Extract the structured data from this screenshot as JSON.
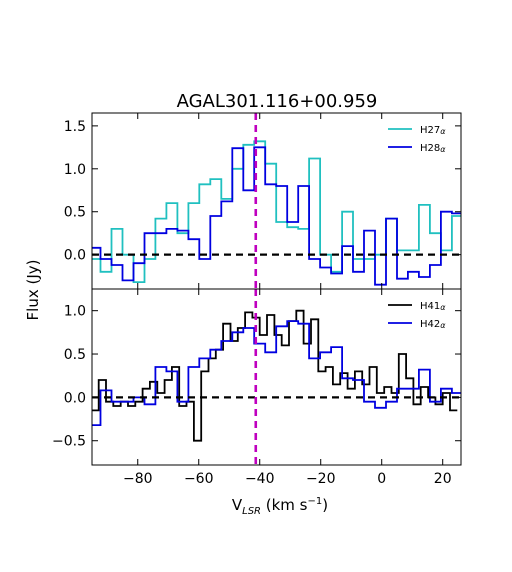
{
  "chart_data": {
    "type": "line",
    "title": "AGAL301.116+00.959",
    "xlabel": "V$_{LSR}$ (km s$^{-1}$)",
    "xlabel_parts": {
      "main": "V",
      "sub": "LSR",
      "rest": " (km s",
      "sup": "−1",
      "close": ")"
    },
    "ylabel": "Flux (Jy)",
    "xlim": [
      -95,
      26
    ],
    "x_ticks": [
      -80,
      -60,
      -40,
      -20,
      0,
      20
    ],
    "x_tick_labels": [
      "−80",
      "−60",
      "−40",
      "−20",
      "0",
      "20"
    ],
    "vline": {
      "x": -41.3,
      "color": "#bf00bf",
      "style": "dashed"
    },
    "hline": {
      "y": 0,
      "color": "#000000",
      "style": "dashed"
    },
    "panels": [
      {
        "ylim": [
          -0.4,
          1.65
        ],
        "y_ticks": [
          0.0,
          0.5,
          1.0,
          1.5
        ],
        "y_tick_labels": [
          "0.0",
          "0.5",
          "1.0",
          "1.5"
        ],
        "legend": {
          "position": "top-right"
        },
        "series": [
          {
            "name": "H27α",
            "label_main": "H27",
            "label_sub": "α",
            "color": "#20c0c0",
            "drawstyle": "steps-mid",
            "x": [
              -94,
              -90.4,
              -86.8,
              -83.2,
              -79.6,
              -76,
              -72.4,
              -68.8,
              -65.2,
              -61.6,
              -58,
              -54.4,
              -50.8,
              -47.2,
              -43.6,
              -40,
              -36.4,
              -32.8,
              -29.2,
              -25.6,
              -22,
              -18.4,
              -14.8,
              -11.2,
              -7.6,
              -4,
              -0.4,
              3.2,
              6.8,
              10.4,
              14,
              17.6,
              21.2,
              24.8
            ],
            "y": [
              -0.05,
              -0.2,
              0.3,
              0.0,
              -0.32,
              -0.05,
              0.42,
              0.6,
              0.25,
              0.6,
              0.82,
              0.88,
              0.65,
              1.0,
              1.28,
              1.32,
              1.06,
              0.38,
              0.32,
              0.3,
              1.12,
              0.0,
              -0.2,
              0.5,
              -0.05,
              -0.05,
              0.0,
              0.42,
              0.05,
              0.05,
              0.58,
              0.25,
              0.05,
              0.45
            ]
          },
          {
            "name": "H28α",
            "label_main": "H28",
            "label_sub": "α",
            "color": "#0000e0",
            "drawstyle": "steps-mid",
            "x": [
              -94,
              -90.4,
              -86.8,
              -83.2,
              -79.6,
              -76,
              -72.4,
              -68.8,
              -65.2,
              -61.6,
              -58,
              -54.4,
              -50.8,
              -47.2,
              -43.6,
              -40,
              -36.4,
              -32.8,
              -29.2,
              -25.6,
              -22,
              -18.4,
              -14.8,
              -11.2,
              -7.6,
              -4,
              -0.4,
              3.2,
              6.8,
              10.4,
              14,
              17.6,
              21.2,
              24.8
            ],
            "y": [
              0.08,
              -0.05,
              -0.12,
              -0.3,
              -0.1,
              0.25,
              0.25,
              0.3,
              0.28,
              0.18,
              -0.05,
              0.45,
              0.62,
              1.24,
              0.75,
              1.25,
              0.82,
              0.8,
              0.38,
              0.8,
              -0.05,
              -0.15,
              -0.22,
              0.1,
              -0.2,
              0.28,
              -0.35,
              0.42,
              -0.28,
              -0.2,
              -0.26,
              -0.12,
              0.5,
              0.48
            ]
          }
        ]
      },
      {
        "ylim": [
          -0.78,
          1.25
        ],
        "y_ticks": [
          -0.5,
          0.0,
          0.5,
          1.0
        ],
        "y_tick_labels": [
          "−0.5",
          "0.0",
          "0.5",
          "1.0"
        ],
        "legend": {
          "position": "top-right"
        },
        "series": [
          {
            "name": "H41α",
            "label_main": "H41",
            "label_sub": "α",
            "color": "#000000",
            "drawstyle": "steps-mid",
            "x": [
              -94,
              -91.6,
              -89.2,
              -86.8,
              -84.4,
              -82,
              -79.6,
              -77.2,
              -74.8,
              -72.4,
              -70,
              -67.6,
              -65.2,
              -62.8,
              -60.4,
              -58,
              -55.6,
              -53.2,
              -50.8,
              -48.4,
              -46,
              -43.6,
              -41.2,
              -38.8,
              -36.4,
              -34,
              -31.6,
              -29.2,
              -26.8,
              -24.4,
              -22,
              -19.6,
              -17.2,
              -14.8,
              -12.4,
              -10,
              -7.6,
              -5.2,
              -2.8,
              -0.4,
              2,
              4.4,
              6.8,
              9.2,
              11.6,
              14,
              16.4,
              18.8,
              21.2,
              23.6
            ],
            "y": [
              -0.15,
              0.2,
              -0.05,
              -0.1,
              -0.05,
              -0.1,
              -0.05,
              0.1,
              0.18,
              0.05,
              0.2,
              0.35,
              -0.1,
              -0.05,
              -0.5,
              0.3,
              0.45,
              0.55,
              0.85,
              0.65,
              0.8,
              0.98,
              0.92,
              0.72,
              0.95,
              0.72,
              0.6,
              0.88,
              1.0,
              0.62,
              0.9,
              0.3,
              0.35,
              0.15,
              0.28,
              0.1,
              0.3,
              0.15,
              0.35,
              0.05,
              0.12,
              0.05,
              0.5,
              0.22,
              -0.08,
              0.12,
              0.0,
              -0.08,
              0.05,
              -0.15
            ]
          },
          {
            "name": "H42α",
            "label_main": "H42",
            "label_sub": "α",
            "color": "#0000e0",
            "drawstyle": "steps-mid",
            "x": [
              -94,
              -90.4,
              -86.8,
              -83.2,
              -79.6,
              -76,
              -72.4,
              -68.8,
              -65.2,
              -61.6,
              -58,
              -54.4,
              -50.8,
              -47.2,
              -43.6,
              -40,
              -36.4,
              -32.8,
              -29.2,
              -25.6,
              -22,
              -18.4,
              -14.8,
              -11.2,
              -7.6,
              -4,
              -0.4,
              3.2,
              6.8,
              10.4,
              14,
              17.6,
              21.2,
              24.8
            ],
            "y": [
              -0.32,
              0.08,
              -0.05,
              -0.05,
              0.0,
              -0.08,
              0.35,
              0.3,
              -0.05,
              0.35,
              0.45,
              0.55,
              0.65,
              0.75,
              0.8,
              0.62,
              0.52,
              0.82,
              0.88,
              0.85,
              0.45,
              0.52,
              0.58,
              0.22,
              0.2,
              -0.05,
              -0.12,
              -0.05,
              0.1,
              0.1,
              0.32,
              -0.05,
              0.1,
              0.05
            ]
          }
        ]
      }
    ]
  }
}
